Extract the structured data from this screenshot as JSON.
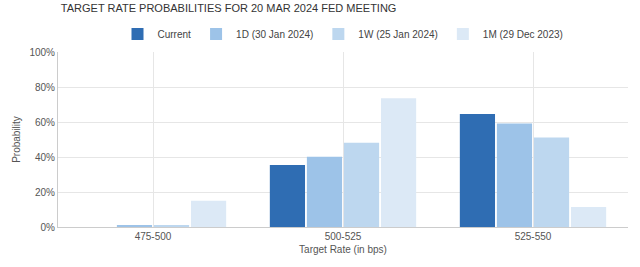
{
  "chart_data": {
    "type": "bar",
    "title": "TARGET RATE PROBABILITIES FOR 20 MAR 2024 FED MEETING",
    "x_label": "Target Rate (in bps)",
    "y_label": "Probability",
    "categories": [
      "475-500",
      "500-525",
      "525-550"
    ],
    "series": [
      {
        "name": "Current",
        "color": "#2f6db3",
        "values": [
          0,
          35.4,
          64.6
        ]
      },
      {
        "name": "1D (30 Jan 2024)",
        "color": "#9dc3e8",
        "values": [
          0.7,
          40.2,
          59.1
        ]
      },
      {
        "name": "1W (25 Jan 2024)",
        "color": "#bdd7ef",
        "values": [
          0.8,
          48.1,
          51.1
        ]
      },
      {
        "name": "1M (29 Dec 2023)",
        "color": "#dce9f6",
        "values": [
          15.0,
          73.6,
          11.4
        ]
      }
    ],
    "ylim": [
      0,
      100
    ],
    "yticks": [
      {
        "value": 0,
        "label": "0%"
      },
      {
        "value": 20,
        "label": "20%"
      },
      {
        "value": 40,
        "label": "40%"
      },
      {
        "value": 60,
        "label": "60%"
      },
      {
        "value": 80,
        "label": "80%"
      },
      {
        "value": 100,
        "label": "100%"
      }
    ],
    "grid": true,
    "legend": "top"
  }
}
